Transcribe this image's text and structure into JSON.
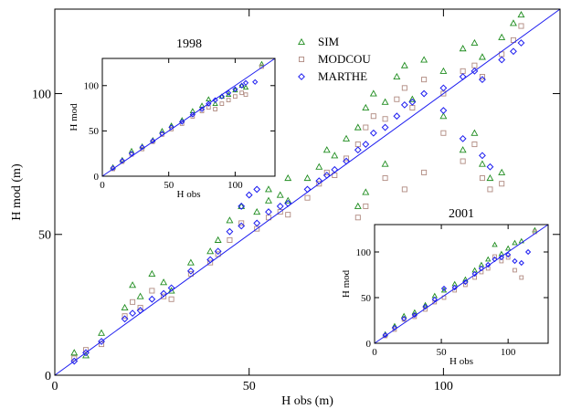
{
  "chart_data": [
    {
      "type": "scatter",
      "xlabel": "H obs (m)",
      "ylabel": "H mod (m)",
      "xlim": [
        0,
        130
      ],
      "ylim": [
        0,
        130
      ],
      "xticks": [
        0,
        50,
        100
      ],
      "yticks": [
        0,
        50,
        100
      ],
      "reference_line": "y = x",
      "legend": {
        "placement": "top-center",
        "entries": [
          "SIM",
          "MODCOU",
          "MARTHE"
        ]
      },
      "series": [
        {
          "name": "SIM",
          "color": "#1e8c1e",
          "marker": "triangle",
          "points": [
            [
              5,
              8
            ],
            [
              8,
              7
            ],
            [
              12,
              15
            ],
            [
              18,
              24
            ],
            [
              20,
              32
            ],
            [
              22,
              28
            ],
            [
              25,
              36
            ],
            [
              28,
              33
            ],
            [
              30,
              30
            ],
            [
              35,
              40
            ],
            [
              40,
              44
            ],
            [
              42,
              48
            ],
            [
              45,
              55
            ],
            [
              48,
              60
            ],
            [
              52,
              58
            ],
            [
              55,
              62
            ],
            [
              58,
              64
            ],
            [
              60,
              62
            ],
            [
              65,
              70
            ],
            [
              68,
              74
            ],
            [
              70,
              80
            ],
            [
              72,
              78
            ],
            [
              75,
              84
            ],
            [
              78,
              88
            ],
            [
              80,
              95
            ],
            [
              82,
              100
            ],
            [
              85,
              97
            ],
            [
              88,
              106
            ],
            [
              90,
              110
            ],
            [
              92,
              98
            ],
            [
              95,
              112
            ],
            [
              100,
              108
            ],
            [
              105,
              116
            ],
            [
              108,
              118
            ],
            [
              110,
              113
            ],
            [
              115,
              120
            ],
            [
              118,
              125
            ],
            [
              120,
              128
            ],
            [
              100,
              92
            ],
            [
              105,
              80
            ],
            [
              110,
              75
            ],
            [
              112,
              70
            ],
            [
              115,
              72
            ],
            [
              108,
              86
            ],
            [
              85,
              75
            ],
            [
              80,
              65
            ],
            [
              78,
              60
            ],
            [
              60,
              70
            ],
            [
              55,
              66
            ]
          ]
        },
        {
          "name": "MODCOU",
          "color": "#b08a80",
          "marker": "square",
          "points": [
            [
              5,
              6
            ],
            [
              8,
              9
            ],
            [
              12,
              11
            ],
            [
              18,
              21
            ],
            [
              20,
              26
            ],
            [
              22,
              24
            ],
            [
              25,
              30
            ],
            [
              28,
              28
            ],
            [
              30,
              27
            ],
            [
              35,
              36
            ],
            [
              40,
              40
            ],
            [
              42,
              43
            ],
            [
              45,
              48
            ],
            [
              48,
              54
            ],
            [
              52,
              52
            ],
            [
              55,
              56
            ],
            [
              58,
              58
            ],
            [
              60,
              57
            ],
            [
              65,
              63
            ],
            [
              68,
              68
            ],
            [
              70,
              72
            ],
            [
              72,
              71
            ],
            [
              75,
              77
            ],
            [
              78,
              82
            ],
            [
              80,
              88
            ],
            [
              82,
              92
            ],
            [
              85,
              91
            ],
            [
              88,
              98
            ],
            [
              90,
              102
            ],
            [
              92,
              95
            ],
            [
              95,
              105
            ],
            [
              100,
              100
            ],
            [
              105,
              108
            ],
            [
              108,
              110
            ],
            [
              110,
              106
            ],
            [
              115,
              114
            ],
            [
              118,
              119
            ],
            [
              120,
              124
            ],
            [
              100,
              86
            ],
            [
              105,
              76
            ],
            [
              110,
              70
            ],
            [
              112,
              66
            ],
            [
              115,
              68
            ],
            [
              108,
              82
            ],
            [
              85,
              70
            ],
            [
              80,
              60
            ],
            [
              78,
              56
            ],
            [
              90,
              66
            ],
            [
              95,
              72
            ]
          ]
        },
        {
          "name": "MARTHE",
          "color": "#1c1cf0",
          "marker": "diamond",
          "points": [
            [
              5,
              5
            ],
            [
              8,
              8
            ],
            [
              12,
              12
            ],
            [
              18,
              20
            ],
            [
              20,
              22
            ],
            [
              22,
              23
            ],
            [
              25,
              27
            ],
            [
              28,
              29
            ],
            [
              30,
              31
            ],
            [
              35,
              37
            ],
            [
              40,
              41
            ],
            [
              42,
              44
            ],
            [
              45,
              51
            ],
            [
              48,
              53
            ],
            [
              52,
              54
            ],
            [
              55,
              58
            ],
            [
              58,
              60
            ],
            [
              60,
              61
            ],
            [
              65,
              66
            ],
            [
              68,
              69
            ],
            [
              70,
              71
            ],
            [
              72,
              73
            ],
            [
              75,
              76
            ],
            [
              78,
              80
            ],
            [
              80,
              82
            ],
            [
              82,
              86
            ],
            [
              85,
              88
            ],
            [
              88,
              92
            ],
            [
              90,
              96
            ],
            [
              92,
              97
            ],
            [
              95,
              100
            ],
            [
              100,
              102
            ],
            [
              105,
              106
            ],
            [
              108,
              108
            ],
            [
              110,
              105
            ],
            [
              115,
              112
            ],
            [
              118,
              115
            ],
            [
              120,
              118
            ],
            [
              100,
              94
            ],
            [
              105,
              84
            ],
            [
              110,
              78
            ],
            [
              112,
              74
            ],
            [
              48,
              60
            ],
            [
              50,
              64
            ],
            [
              52,
              66
            ]
          ]
        }
      ]
    },
    {
      "type": "scatter",
      "title": "1998",
      "xlabel": "H obs",
      "ylabel": "H mod",
      "xlim": [
        0,
        130
      ],
      "ylim": [
        0,
        130
      ],
      "xticks": [
        0,
        50,
        100
      ],
      "yticks": [
        0,
        50,
        100
      ],
      "reference_line": "y = x",
      "series": [
        {
          "name": "SIM",
          "color": "#1e8c1e",
          "marker": "triangle",
          "points": [
            [
              8,
              10
            ],
            [
              15,
              18
            ],
            [
              22,
              28
            ],
            [
              30,
              33
            ],
            [
              38,
              40
            ],
            [
              45,
              50
            ],
            [
              52,
              56
            ],
            [
              60,
              62
            ],
            [
              68,
              72
            ],
            [
              75,
              78
            ],
            [
              80,
              85
            ],
            [
              85,
              80
            ],
            [
              90,
              88
            ],
            [
              95,
              90
            ],
            [
              100,
              95
            ],
            [
              105,
              100
            ],
            [
              108,
              98
            ],
            [
              120,
              124
            ]
          ]
        },
        {
          "name": "MODCOU",
          "color": "#b08a80",
          "marker": "square",
          "points": [
            [
              8,
              8
            ],
            [
              15,
              16
            ],
            [
              22,
              24
            ],
            [
              30,
              30
            ],
            [
              38,
              38
            ],
            [
              45,
              46
            ],
            [
              52,
              52
            ],
            [
              60,
              58
            ],
            [
              68,
              66
            ],
            [
              75,
              72
            ],
            [
              80,
              76
            ],
            [
              85,
              74
            ],
            [
              90,
              80
            ],
            [
              95,
              84
            ],
            [
              100,
              88
            ],
            [
              105,
              92
            ],
            [
              108,
              90
            ],
            [
              120,
              121
            ]
          ]
        },
        {
          "name": "MARTHE",
          "color": "#1c1cf0",
          "marker": "diamond",
          "points": [
            [
              8,
              9
            ],
            [
              15,
              17
            ],
            [
              22,
              25
            ],
            [
              30,
              32
            ],
            [
              38,
              39
            ],
            [
              45,
              47
            ],
            [
              52,
              54
            ],
            [
              60,
              60
            ],
            [
              68,
              68
            ],
            [
              75,
              74
            ],
            [
              80,
              80
            ],
            [
              85,
              84
            ],
            [
              90,
              88
            ],
            [
              95,
              92
            ],
            [
              100,
              96
            ],
            [
              105,
              100
            ],
            [
              108,
              103
            ],
            [
              115,
              104
            ]
          ]
        }
      ]
    },
    {
      "type": "scatter",
      "title": "2001",
      "xlabel": "H obs",
      "ylabel": "H mod",
      "xlim": [
        0,
        130
      ],
      "ylim": [
        0,
        130
      ],
      "xticks": [
        0,
        50,
        100
      ],
      "yticks": [
        0,
        50,
        100
      ],
      "reference_line": "y = x",
      "series": [
        {
          "name": "SIM",
          "color": "#1e8c1e",
          "marker": "triangle",
          "points": [
            [
              8,
              10
            ],
            [
              15,
              19
            ],
            [
              22,
              30
            ],
            [
              30,
              34
            ],
            [
              38,
              42
            ],
            [
              45,
              52
            ],
            [
              52,
              58
            ],
            [
              60,
              65
            ],
            [
              68,
              70
            ],
            [
              75,
              80
            ],
            [
              80,
              86
            ],
            [
              85,
              92
            ],
            [
              90,
              108
            ],
            [
              95,
              98
            ],
            [
              100,
              104
            ],
            [
              105,
              110
            ],
            [
              110,
              112
            ],
            [
              120,
              124
            ]
          ]
        },
        {
          "name": "MODCOU",
          "color": "#b08a80",
          "marker": "square",
          "points": [
            [
              8,
              8
            ],
            [
              15,
              15
            ],
            [
              22,
              26
            ],
            [
              30,
              29
            ],
            [
              38,
              37
            ],
            [
              45,
              45
            ],
            [
              52,
              50
            ],
            [
              60,
              58
            ],
            [
              68,
              64
            ],
            [
              75,
              72
            ],
            [
              80,
              78
            ],
            [
              85,
              82
            ],
            [
              90,
              95
            ],
            [
              95,
              90
            ],
            [
              100,
              94
            ],
            [
              105,
              80
            ],
            [
              110,
              72
            ],
            [
              120,
              122
            ]
          ]
        },
        {
          "name": "MARTHE",
          "color": "#1c1cf0",
          "marker": "diamond",
          "points": [
            [
              8,
              9
            ],
            [
              15,
              17
            ],
            [
              22,
              27
            ],
            [
              30,
              31
            ],
            [
              38,
              40
            ],
            [
              45,
              48
            ],
            [
              52,
              60
            ],
            [
              60,
              61
            ],
            [
              68,
              67
            ],
            [
              75,
              76
            ],
            [
              80,
              82
            ],
            [
              85,
              86
            ],
            [
              90,
              92
            ],
            [
              95,
              94
            ],
            [
              100,
              97
            ],
            [
              105,
              90
            ],
            [
              110,
              88
            ],
            [
              115,
              100
            ]
          ]
        }
      ]
    }
  ]
}
